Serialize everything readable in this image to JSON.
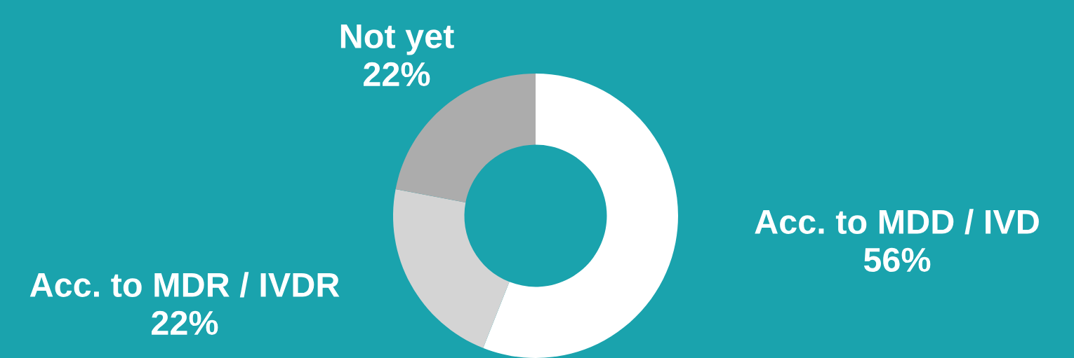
{
  "chart_data": {
    "type": "donut",
    "categories": [
      "Acc. to MDD / IVD",
      "Acc. to MDR / IVDR",
      "Not yet"
    ],
    "values": [
      56,
      22,
      22
    ],
    "colors": [
      "#ffffff",
      "#d4d4d4",
      "#acacac"
    ],
    "value_labels": [
      "56%",
      "22%",
      "22%"
    ],
    "legend": false
  }
}
